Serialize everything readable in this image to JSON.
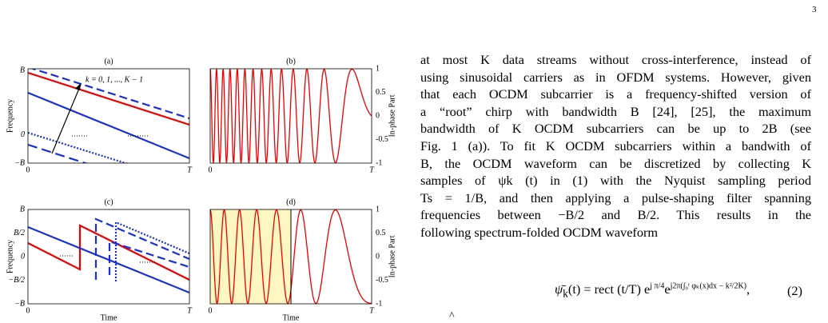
{
  "page_number": "3",
  "figure": {
    "panels": [
      {
        "label": "(a)",
        "y_label": "Frequency",
        "y_ticks": [
          "B",
          "0",
          "−B"
        ],
        "x_ticks": [
          "0",
          "T"
        ],
        "annotation": "k = 0, 1, ..., K − 1"
      },
      {
        "label": "(b)",
        "y_label": "In-phase Part",
        "y_ticks": [
          "1",
          "0.5",
          "0",
          "-0.5",
          "-1"
        ],
        "x_ticks": [
          "0",
          "T"
        ]
      },
      {
        "label": "(c)",
        "y_label": "Frequency",
        "y_ticks": [
          "B",
          "B/2",
          "0",
          "−B/2",
          "−B"
        ],
        "x_ticks": [
          "0",
          "T"
        ],
        "x_label": "Time"
      },
      {
        "label": "(d)",
        "y_label": "In-phase Part",
        "y_ticks": [
          "1",
          "0.5",
          "0",
          "-0.5",
          "-1"
        ],
        "x_ticks": [
          "0",
          "T"
        ],
        "x_label": "Time"
      }
    ]
  },
  "paragraph": [
    "at most K data streams without cross-interference, instead of",
    "using sinusoidal carriers as in OFDM systems. However, given",
    "that each OCDM subcarrier is a frequency-shifted version of",
    "a “root” chirp with bandwidth B [24], [25], the maximum",
    "bandwidth of K OCDM subcarriers can be up to 2B (see",
    "Fig. 1 (a)). To fit K OCDM subcarriers within a bandwith of",
    "B, the OCDM waveform can be discretized by collecting K",
    "samples of ψk (t) in (1) with the Nyquist sampling period",
    "Ts = 1/B, and then applying a pulse-shaping filter spanning",
    "frequencies between −B/2 and B/2. This results in the",
    "following spectrum-folded OCDM waveform"
  ],
  "equation": {
    "lhs": "ψ̄",
    "lhs_sub": "k",
    "body": "(t) = rect (t/T) e",
    "exp1": "j π/4",
    "mid": "e",
    "exp2": "j2π(∫₀ᵗ φₖ(x)dx − k²/2K)",
    "tail": ",",
    "number": "(2)"
  },
  "footer_glyph": "^"
}
